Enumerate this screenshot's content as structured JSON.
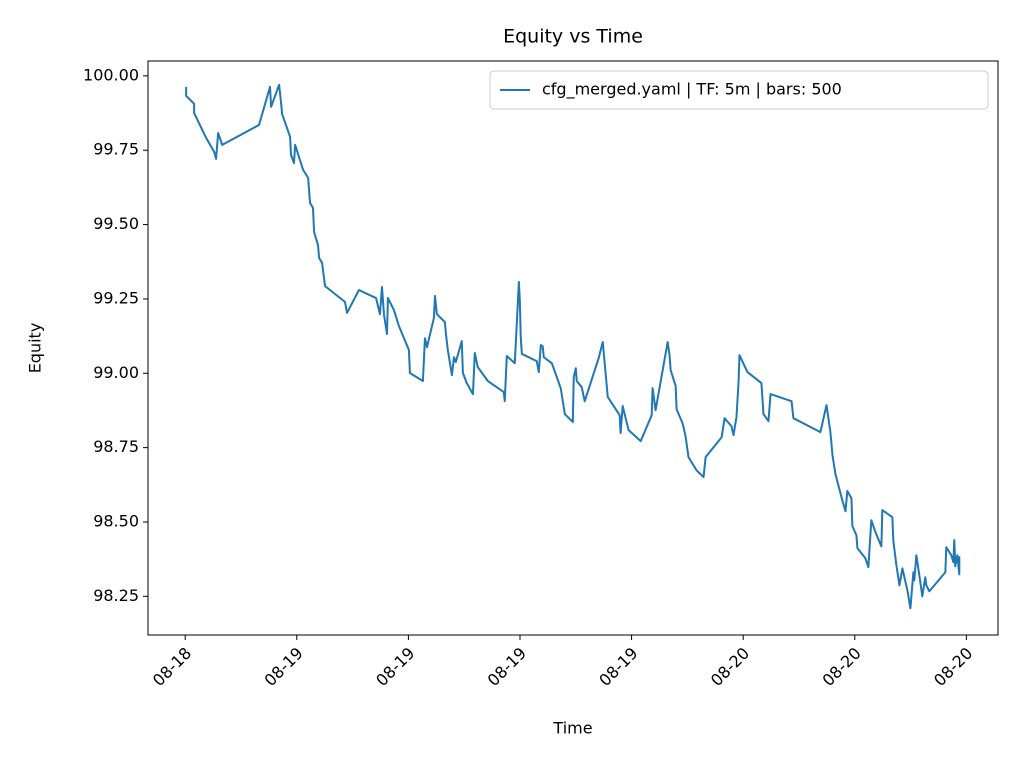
{
  "chart_data": {
    "type": "line",
    "title": "Equity vs Time",
    "xlabel": "Time",
    "ylabel": "Equity",
    "x": [
      18.05,
      18.05,
      18.48,
      18.48,
      19.13,
      19.56,
      19.66,
      19.77,
      19.99,
      21.97,
      22.56,
      22.62,
      23.05,
      23.16,
      23.21,
      23.64,
      23.69,
      23.85,
      23.91,
      24.34,
      24.61,
      24.71,
      24.87,
      24.93,
      25.14,
      25.2,
      25.36,
      25.52,
      26.59,
      26.7,
      27.34,
      28.26,
      28.47,
      28.58,
      28.69,
      28.85,
      28.9,
      29.22,
      29.49,
      30.03,
      30.08,
      30.78,
      30.89,
      31.0,
      31.37,
      31.43,
      31.53,
      31.96,
      32.02,
      32.12,
      32.34,
      32.45,
      32.55,
      32.87,
      32.93,
      33.14,
      33.47,
      33.57,
      33.73,
      34.27,
      35.13,
      35.18,
      35.29,
      35.72,
      35.94,
      35.99,
      36.04,
      36.1,
      36.9,
      37.01,
      37.12,
      37.22,
      37.28,
      37.71,
      38.19,
      38.41,
      38.84,
      38.89,
      39.0,
      39.05,
      39.32,
      39.48,
      40.23,
      40.45,
      40.72,
      41.36,
      41.41,
      41.52,
      41.68,
      41.84,
      42.49,
      43.08,
      43.13,
      43.29,
      43.94,
      44.04,
      44.1,
      44.37,
      44.42,
      44.74,
      44.9,
      45.06,
      45.49,
      45.87,
      45.98,
      46.84,
      47.0,
      47.37,
      47.48,
      47.64,
      47.75,
      47.8,
      48.23,
      48.98,
      49.09,
      49.36,
      49.47,
      50.6,
      50.7,
      52.15,
      52.48,
      52.69,
      52.8,
      52.96,
      53.33,
      53.5,
      53.6,
      53.82,
      53.87,
      54.09,
      54.14,
      54.57,
      54.73,
      54.89,
      55.11,
      55.43,
      55.48,
      56.02,
      56.07,
      56.23,
      56.4,
      56.56,
      56.83,
      56.99,
      57.15,
      57.2,
      57.31,
      57.47,
      57.63,
      57.79,
      57.85,
      58.01,
      58.87,
      58.92,
      59.19,
      59.3,
      59.35,
      59.4,
      59.51,
      59.62,
      59.62
    ],
    "series": [
      {
        "name": "cfg_merged.yaml | TF: 5m | bars: 500",
        "color": "#1f77b4",
        "values": [
          99.963,
          99.933,
          99.906,
          99.875,
          99.791,
          99.744,
          99.721,
          99.808,
          99.768,
          99.835,
          99.963,
          99.896,
          99.97,
          99.906,
          99.872,
          99.795,
          99.734,
          99.707,
          99.768,
          99.684,
          99.657,
          99.573,
          99.556,
          99.475,
          99.431,
          99.388,
          99.371,
          99.293,
          99.24,
          99.203,
          99.28,
          99.253,
          99.199,
          99.29,
          99.196,
          99.132,
          99.253,
          99.213,
          99.159,
          99.078,
          99.001,
          98.974,
          99.118,
          99.088,
          99.186,
          99.26,
          99.199,
          99.172,
          99.132,
          99.078,
          98.994,
          99.054,
          99.038,
          99.108,
          99.001,
          98.967,
          98.93,
          99.068,
          99.021,
          98.974,
          98.937,
          98.906,
          99.058,
          99.034,
          99.307,
          99.246,
          99.122,
          99.065,
          99.041,
          99.004,
          99.095,
          99.091,
          99.054,
          99.034,
          98.95,
          98.863,
          98.836,
          98.987,
          99.017,
          98.974,
          98.953,
          98.906,
          99.051,
          99.105,
          98.92,
          98.859,
          98.799,
          98.89,
          98.849,
          98.809,
          98.772,
          98.859,
          98.95,
          98.876,
          99.105,
          99.061,
          99.011,
          98.957,
          98.879,
          98.832,
          98.789,
          98.718,
          98.674,
          98.651,
          98.718,
          98.785,
          98.849,
          98.822,
          98.792,
          98.853,
          98.97,
          99.061,
          99.004,
          98.967,
          98.863,
          98.839,
          98.93,
          98.906,
          98.849,
          98.802,
          98.893,
          98.802,
          98.725,
          98.661,
          98.573,
          98.536,
          98.604,
          98.58,
          98.486,
          98.455,
          98.412,
          98.378,
          98.348,
          98.506,
          98.466,
          98.418,
          98.54,
          98.516,
          98.439,
          98.358,
          98.287,
          98.344,
          98.27,
          98.21,
          98.331,
          98.304,
          98.388,
          98.321,
          98.25,
          98.314,
          98.287,
          98.267,
          98.331,
          98.415,
          98.388,
          98.365,
          98.439,
          98.351,
          98.388,
          98.324,
          98.385
        ]
      }
    ],
    "xlim": [
      16.0,
      61.7
    ],
    "ylim": [
      98.12,
      100.05
    ],
    "xticks": [
      {
        "value": 18,
        "label": "08-18"
      },
      {
        "value": 24,
        "label": "08-19"
      },
      {
        "value": 30,
        "label": "08-19"
      },
      {
        "value": 36,
        "label": "08-19"
      },
      {
        "value": 42,
        "label": "08-19"
      },
      {
        "value": 48,
        "label": "08-20"
      },
      {
        "value": 54,
        "label": "08-20"
      },
      {
        "value": 60,
        "label": "08-20"
      }
    ],
    "yticks": [
      {
        "value": 98.25,
        "label": "98.25"
      },
      {
        "value": 98.5,
        "label": "98.50"
      },
      {
        "value": 98.75,
        "label": "98.75"
      },
      {
        "value": 99,
        "label": "99.00"
      },
      {
        "value": 99.25,
        "label": "99.25"
      },
      {
        "value": 99.5,
        "label": "99.50"
      },
      {
        "value": 99.75,
        "label": "99.75"
      },
      {
        "value": 100,
        "label": "100.00"
      }
    ],
    "grid": false,
    "legend": "upper right"
  }
}
